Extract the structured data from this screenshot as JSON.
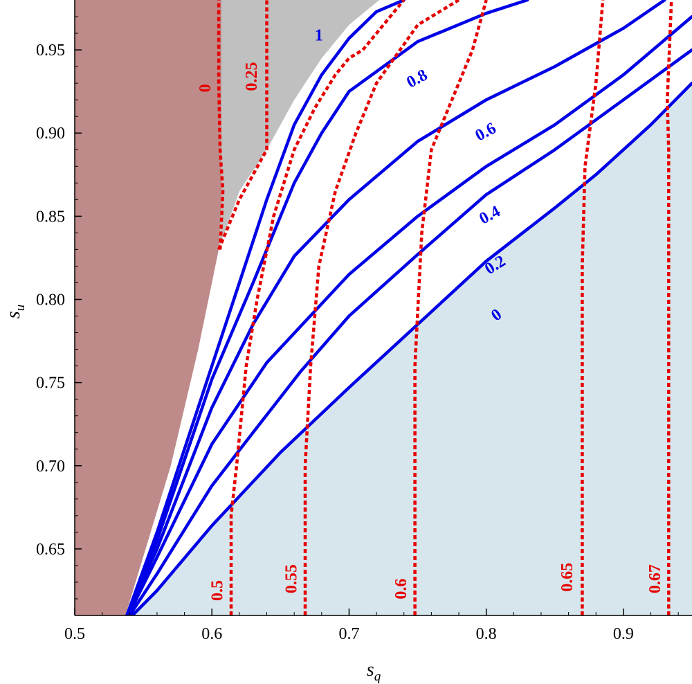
{
  "chart_data": {
    "type": "line",
    "title": "",
    "xlabel": "s",
    "xlabel_sub": "q",
    "ylabel": "s",
    "ylabel_sub": "u",
    "xlim": [
      0.5,
      0.95
    ],
    "ylim": [
      0.61,
      0.98
    ],
    "grid": false,
    "x_ticks": [
      {
        "v": 0.5,
        "label": "0.5"
      },
      {
        "v": 0.6,
        "label": "0.6"
      },
      {
        "v": 0.7,
        "label": "0.7"
      },
      {
        "v": 0.8,
        "label": "0.8"
      },
      {
        "v": 0.9,
        "label": "0.9"
      }
    ],
    "y_ticks": [
      {
        "v": 0.65,
        "label": "0.65"
      },
      {
        "v": 0.7,
        "label": "0.70"
      },
      {
        "v": 0.75,
        "label": "0.75"
      },
      {
        "v": 0.8,
        "label": "0.80"
      },
      {
        "v": 0.85,
        "label": "0.85"
      },
      {
        "v": 0.9,
        "label": "0.90"
      },
      {
        "v": 0.95,
        "label": "0.95"
      }
    ],
    "colors": {
      "solid": "#0000e6",
      "dashed": "#e60000",
      "region_left": "#bf8a8a",
      "region_top": "#c0c0c0",
      "region_bottom": "#d7e6ec"
    },
    "regions": {
      "left": [
        [
          0.5,
          0.61
        ],
        [
          0.537,
          0.61
        ],
        [
          0.57,
          0.7
        ],
        [
          0.59,
          0.77
        ],
        [
          0.605,
          0.83
        ],
        [
          0.607,
          0.86
        ],
        [
          0.607,
          0.91
        ],
        [
          0.607,
          0.98
        ],
        [
          0.5,
          0.98
        ]
      ],
      "top": [
        [
          0.607,
          0.98
        ],
        [
          0.607,
          0.91
        ],
        [
          0.607,
          0.86
        ],
        [
          0.605,
          0.83
        ],
        [
          0.62,
          0.865
        ],
        [
          0.64,
          0.89
        ],
        [
          0.66,
          0.92
        ],
        [
          0.68,
          0.945
        ],
        [
          0.7,
          0.965
        ],
        [
          0.722,
          0.98
        ]
      ],
      "bottom": [
        [
          0.54,
          0.61
        ],
        [
          0.95,
          0.61
        ],
        [
          0.95,
          0.93
        ],
        [
          0.92,
          0.905
        ],
        [
          0.88,
          0.875
        ],
        [
          0.85,
          0.855
        ],
        [
          0.8,
          0.823
        ],
        [
          0.75,
          0.785
        ],
        [
          0.7,
          0.747
        ],
        [
          0.65,
          0.708
        ],
        [
          0.6,
          0.664
        ],
        [
          0.56,
          0.625
        ]
      ]
    },
    "solid_series": [
      {
        "name": "0",
        "points": [
          [
            0.542,
            0.61
          ],
          [
            0.56,
            0.625
          ],
          [
            0.6,
            0.664
          ],
          [
            0.65,
            0.708
          ],
          [
            0.7,
            0.747
          ],
          [
            0.75,
            0.785
          ],
          [
            0.8,
            0.823
          ],
          [
            0.85,
            0.855
          ],
          [
            0.88,
            0.875
          ],
          [
            0.92,
            0.905
          ],
          [
            0.95,
            0.93
          ]
        ]
      },
      {
        "name": "0.2",
        "points": [
          [
            0.54,
            0.61
          ],
          [
            0.56,
            0.635
          ],
          [
            0.6,
            0.688
          ],
          [
            0.63,
            0.72
          ],
          [
            0.665,
            0.757
          ],
          [
            0.7,
            0.79
          ],
          [
            0.75,
            0.827
          ],
          [
            0.8,
            0.863
          ],
          [
            0.85,
            0.89
          ],
          [
            0.9,
            0.92
          ],
          [
            0.95,
            0.95
          ]
        ]
      },
      {
        "name": "0.4",
        "points": [
          [
            0.539,
            0.61
          ],
          [
            0.56,
            0.645
          ],
          [
            0.6,
            0.713
          ],
          [
            0.64,
            0.762
          ],
          [
            0.7,
            0.815
          ],
          [
            0.75,
            0.85
          ],
          [
            0.8,
            0.88
          ],
          [
            0.85,
            0.905
          ],
          [
            0.9,
            0.935
          ],
          [
            0.95,
            0.97
          ]
        ]
      },
      {
        "name": "0.6",
        "points": [
          [
            0.538,
            0.61
          ],
          [
            0.56,
            0.65
          ],
          [
            0.6,
            0.735
          ],
          [
            0.63,
            0.785
          ],
          [
            0.66,
            0.826
          ],
          [
            0.7,
            0.86
          ],
          [
            0.75,
            0.895
          ],
          [
            0.8,
            0.92
          ],
          [
            0.85,
            0.94
          ],
          [
            0.9,
            0.963
          ],
          [
            0.93,
            0.98
          ]
        ]
      },
      {
        "name": "0.8",
        "points": [
          [
            0.538,
            0.61
          ],
          [
            0.56,
            0.655
          ],
          [
            0.6,
            0.752
          ],
          [
            0.63,
            0.81
          ],
          [
            0.66,
            0.87
          ],
          [
            0.68,
            0.9
          ],
          [
            0.7,
            0.925
          ],
          [
            0.75,
            0.955
          ],
          [
            0.8,
            0.972
          ],
          [
            0.83,
            0.98
          ]
        ]
      },
      {
        "name": "1",
        "points": [
          [
            0.538,
            0.61
          ],
          [
            0.56,
            0.66
          ],
          [
            0.6,
            0.76
          ],
          [
            0.62,
            0.81
          ],
          [
            0.64,
            0.86
          ],
          [
            0.66,
            0.905
          ],
          [
            0.68,
            0.935
          ],
          [
            0.7,
            0.957
          ],
          [
            0.72,
            0.973
          ],
          [
            0.74,
            0.98
          ]
        ]
      }
    ],
    "dashed_series": [
      {
        "name": "0",
        "points": [
          [
            0.606,
            0.83
          ],
          [
            0.608,
            0.865
          ],
          [
            0.606,
            0.89
          ],
          [
            0.605,
            0.93
          ],
          [
            0.605,
            0.98
          ]
        ]
      },
      {
        "name": "0.25",
        "points": [
          [
            0.605,
            0.83
          ],
          [
            0.62,
            0.86
          ],
          [
            0.64,
            0.89
          ],
          [
            0.64,
            0.93
          ],
          [
            0.64,
            0.98
          ]
        ]
      },
      {
        "name": "0.5",
        "points": [
          [
            0.614,
            0.61
          ],
          [
            0.614,
            0.67
          ],
          [
            0.618,
            0.7
          ],
          [
            0.625,
            0.76
          ],
          [
            0.633,
            0.8
          ],
          [
            0.645,
            0.85
          ],
          [
            0.66,
            0.89
          ],
          [
            0.675,
            0.915
          ],
          [
            0.69,
            0.935
          ],
          [
            0.7,
            0.945
          ],
          [
            0.71,
            0.95
          ],
          [
            0.72,
            0.96
          ],
          [
            0.73,
            0.97
          ],
          [
            0.74,
            0.98
          ]
        ]
      },
      {
        "name": "0.55",
        "points": [
          [
            0.668,
            0.61
          ],
          [
            0.668,
            0.7
          ],
          [
            0.672,
            0.76
          ],
          [
            0.678,
            0.82
          ],
          [
            0.69,
            0.865
          ],
          [
            0.705,
            0.9
          ],
          [
            0.72,
            0.93
          ],
          [
            0.75,
            0.965
          ],
          [
            0.78,
            0.98
          ]
        ]
      },
      {
        "name": "0.6",
        "points": [
          [
            0.748,
            0.61
          ],
          [
            0.748,
            0.76
          ],
          [
            0.753,
            0.84
          ],
          [
            0.76,
            0.89
          ],
          [
            0.77,
            0.91
          ],
          [
            0.79,
            0.95
          ],
          [
            0.8,
            0.98
          ]
        ]
      },
      {
        "name": "0.65",
        "points": [
          [
            0.87,
            0.61
          ],
          [
            0.87,
            0.82
          ],
          [
            0.872,
            0.88
          ],
          [
            0.88,
            0.93
          ],
          [
            0.885,
            0.98
          ]
        ]
      },
      {
        "name": "0.67",
        "points": [
          [
            0.933,
            0.61
          ],
          [
            0.933,
            0.89
          ],
          [
            0.932,
            0.92
          ],
          [
            0.935,
            0.98
          ]
        ]
      }
    ],
    "solid_labels": [
      {
        "text": "1",
        "x": 0.678,
        "y": 0.958,
        "rot": 0
      },
      {
        "text": "0.8",
        "x": 0.75,
        "y": 0.932,
        "rot": -28
      },
      {
        "text": "0.6",
        "x": 0.8,
        "y": 0.9,
        "rot": -28
      },
      {
        "text": "0.4",
        "x": 0.803,
        "y": 0.85,
        "rot": -28
      },
      {
        "text": "0.2",
        "x": 0.807,
        "y": 0.82,
        "rot": -32
      },
      {
        "text": "0",
        "x": 0.808,
        "y": 0.79,
        "rot": -35
      }
    ],
    "dashed_labels": [
      {
        "text": "0",
        "x": 0.596,
        "y": 0.927,
        "rot": -90
      },
      {
        "text": "0.25",
        "x": 0.63,
        "y": 0.934,
        "rot": -90
      },
      {
        "text": "0.5",
        "x": 0.605,
        "y": 0.625,
        "rot": -90
      },
      {
        "text": "0.55",
        "x": 0.659,
        "y": 0.632,
        "rot": -90
      },
      {
        "text": "0.6",
        "x": 0.739,
        "y": 0.626,
        "rot": -90
      },
      {
        "text": "0.65",
        "x": 0.86,
        "y": 0.633,
        "rot": -90
      },
      {
        "text": "0.67",
        "x": 0.924,
        "y": 0.632,
        "rot": -90
      }
    ]
  }
}
